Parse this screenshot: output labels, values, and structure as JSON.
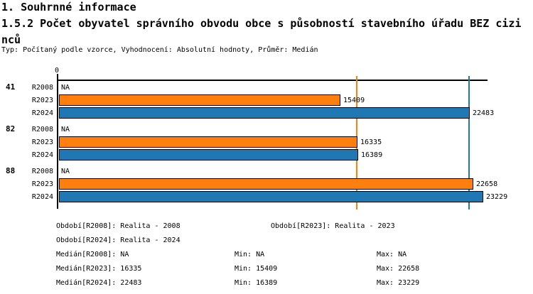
{
  "header": {
    "section_title": "1. Souhrnné informace",
    "chart_title": "1.5.2 Počet obyvatel správního obvodu obce s působností stavebního úřadu BEZ cizinců",
    "meta_line": "Typ: Počítaný podle vzorce, Vyhodnocení: Absolutní hodnoty, Průměr: Medián"
  },
  "chart_data": {
    "type": "bar",
    "orientation": "horizontal",
    "title": "1.5.2 Počet obyvatel správního obvodu obce s působností stavebního úřadu BEZ cizinců",
    "categories": [
      "41",
      "82",
      "88"
    ],
    "series": [
      {
        "name": "R2008",
        "color": null,
        "values": [
          null,
          null,
          null
        ]
      },
      {
        "name": "R2023",
        "color": "#FF7F0E",
        "values": [
          15409,
          16335,
          22658
        ]
      },
      {
        "name": "R2024",
        "color": "#1F77B4",
        "values": [
          22483,
          16389,
          23229
        ]
      }
    ],
    "na_label": "NA",
    "value_labels": true,
    "grid": false,
    "xlim": [
      0,
      23455
    ],
    "tick_zero_label": "0",
    "median_lines": [
      {
        "series": "R2023",
        "value": 16335,
        "color": "#FF7F0E"
      },
      {
        "series": "R2024",
        "value": 22483,
        "color": "#1F77B4"
      }
    ]
  },
  "legend": {
    "period_2008": "Období[R2008]: Realita - 2008",
    "period_2023": "Období[R2023]: Realita - 2023",
    "period_2024": "Období[R2024]: Realita - 2024"
  },
  "stats": {
    "median_2008": "Medián[R2008]: NA",
    "median_2023": "Medián[R2023]: 16335",
    "median_2024": "Medián[R2024]: 22483",
    "min_2008": "Min: NA",
    "min_2023": "Min: 15409",
    "min_2024": "Min: 16389",
    "max_2008": "Max: NA",
    "max_2023": "Max: 22658",
    "max_2024": "Max: 23229"
  },
  "colors": {
    "series_r2023": "#FF7F0E",
    "series_r2024": "#1F77B4",
    "axis": "#000000",
    "background": "#FFFFFF"
  }
}
